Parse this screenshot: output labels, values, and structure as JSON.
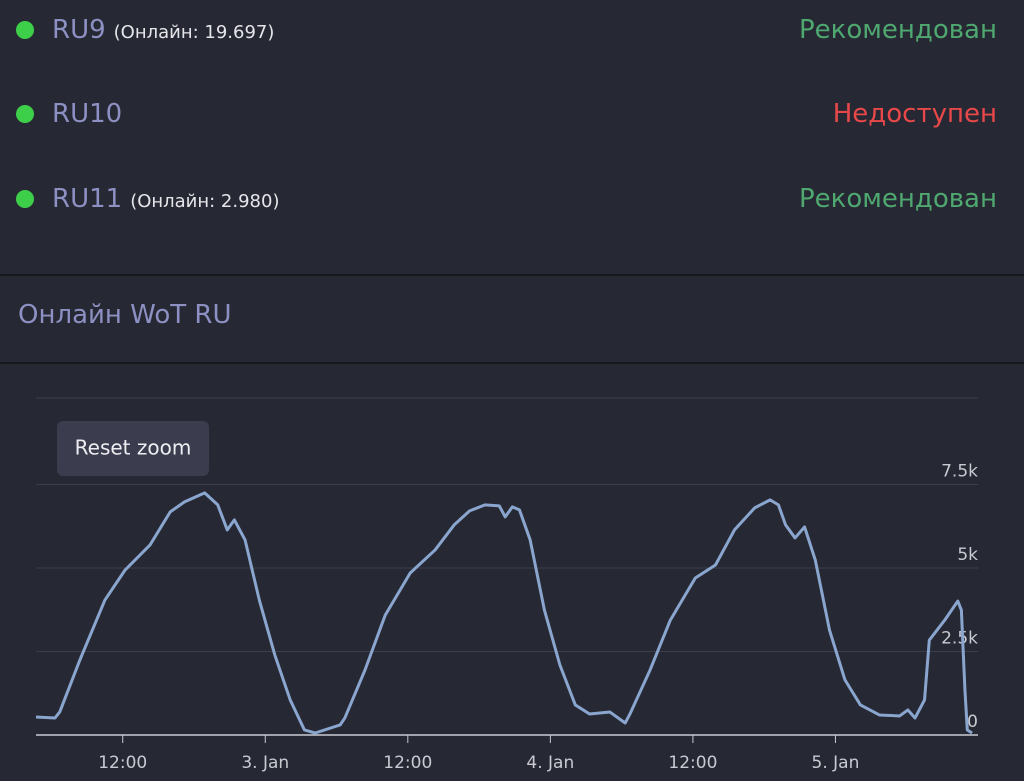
{
  "servers": [
    {
      "name": "RU9",
      "online": "(Онлайн: 19.697)",
      "status": "Рекомендован",
      "status_color": "#4fa870"
    },
    {
      "name": "RU10",
      "status": "Недоступен",
      "status_color": "#e8484a"
    },
    {
      "name": "RU11",
      "online": "(Онлайн: 2.980)",
      "status": "Рекомендован",
      "status_color": "#4fa870"
    }
  ],
  "section_title": "Онлайн WoT RU",
  "zoom_button": "Reset zoom",
  "chart_data": {
    "type": "line",
    "color": "#8aa6cf",
    "x": [
      4.7,
      6.3,
      6.7,
      8.4,
      10.5,
      12.2,
      14.3,
      16.0,
      17.2,
      18.9,
      20.0,
      20.8,
      21.4,
      22.3,
      23.5,
      24.8,
      26.1,
      27.3,
      28.2,
      30.3,
      30.7,
      32.4,
      34.1,
      36.2,
      38.3,
      39.9,
      41.2,
      42.5,
      43.7,
      44.2,
      44.8,
      45.4,
      46.3,
      47.5,
      48.8,
      50.1,
      51.3,
      53.0,
      54.3,
      54.7,
      56.4,
      58.1,
      60.2,
      61.9,
      63.5,
      65.2,
      66.5,
      67.2,
      67.8,
      68.6,
      69.4,
      70.3,
      71.5,
      72.8,
      74.1,
      75.7,
      77.4,
      78.1,
      78.7,
      79.5,
      79.9,
      81.2,
      82.3,
      82.6,
      82.9,
      83.1,
      83.5
    ],
    "values": [
      540,
      510,
      690,
      2250,
      4040,
      4940,
      5690,
      6680,
      6980,
      7250,
      6890,
      6140,
      6440,
      5840,
      4040,
      2400,
      1050,
      150,
      60,
      300,
      510,
      1950,
      3590,
      4850,
      5540,
      6290,
      6710,
      6890,
      6860,
      6530,
      6830,
      6740,
      5840,
      3740,
      2100,
      900,
      630,
      690,
      360,
      630,
      1950,
      3440,
      4700,
      5090,
      6140,
      6800,
      7040,
      6890,
      6290,
      5900,
      6230,
      5240,
      3140,
      1650,
      900,
      600,
      570,
      750,
      510,
      1050,
      2840,
      3440,
      4010,
      3740,
      1350,
      150,
      60
    ],
    "xlim": [
      4.7,
      84
    ],
    "xticks": [
      {
        "value": 12,
        "label": "12:00"
      },
      {
        "value": 24,
        "label": "3. Jan"
      },
      {
        "value": 36,
        "label": "12:00"
      },
      {
        "value": 48,
        "label": "4. Jan"
      },
      {
        "value": 60,
        "label": "12:00"
      },
      {
        "value": 72,
        "label": "5. Jan"
      }
    ],
    "ylim": [
      0,
      10000
    ],
    "yticks": [
      0,
      {
        "value": 2500,
        "label": "2.5k"
      },
      {
        "value": 5000,
        "label": "5k"
      },
      {
        "value": 7500,
        "label": "7.5k"
      }
    ],
    "grid": true
  }
}
